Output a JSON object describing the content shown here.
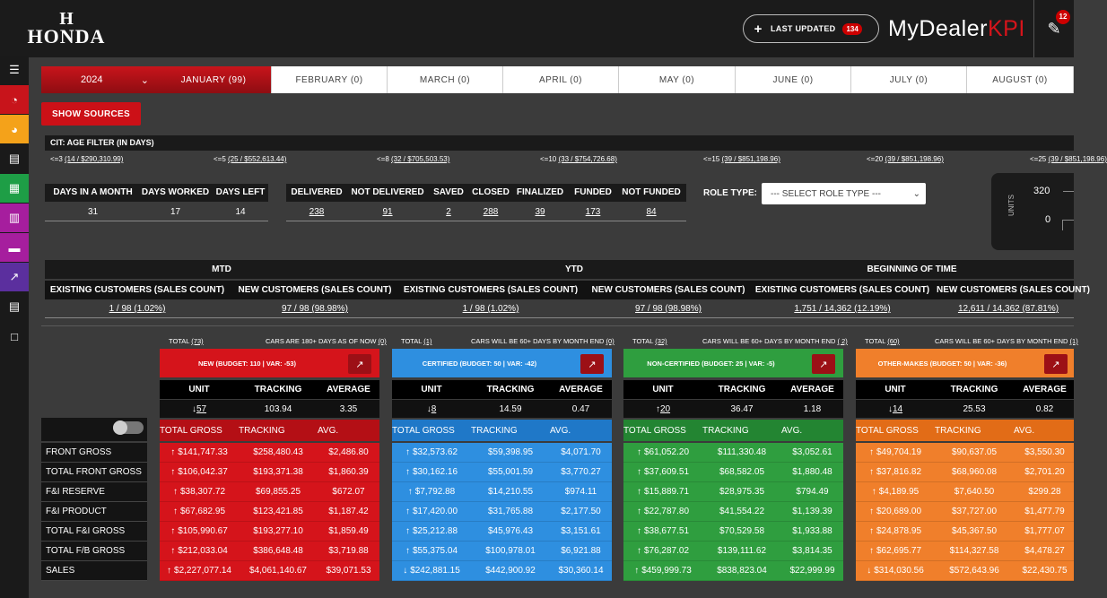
{
  "brand": {
    "logo_text": "HONDA",
    "mark": "H"
  },
  "header": {
    "last_updated_label": "LAST UPDATED",
    "last_updated_count": "134",
    "product_name_a": "MyDealer",
    "product_name_b": "KPI",
    "notif_count": "12"
  },
  "sidebar": {
    "icons": [
      "menu-icon",
      "speedometer-icon",
      "gauge-icon",
      "list-icon",
      "table-icon",
      "grid-icon",
      "card-icon",
      "chart-line-icon",
      "list-alt-icon",
      "document-icon"
    ],
    "colors": [
      "#1a1a1a",
      "#c8141b",
      "#f4a21a",
      "#1a1a1a",
      "#1e9e46",
      "#a61e9e",
      "#a61e9e",
      "#5b2f9e",
      "#1a1a1a",
      "#1a1a1a"
    ]
  },
  "filters": {
    "year": "2024",
    "months": [
      "JANUARY (99)",
      "FEBRUARY (0)",
      "MARCH (0)",
      "APRIL (0)",
      "MAY (0)",
      "JUNE (0)",
      "JULY (0)",
      "AUGUST (0)"
    ],
    "show_sources": "SHOW SOURCES"
  },
  "age_filter": {
    "title": "CIT: AGE FILTER (IN DAYS)",
    "items": [
      {
        "prefix": "<=3 ",
        "link": "(14 / $290,310.99)"
      },
      {
        "prefix": "<=5 ",
        "link": "(25 / $552,613.44)"
      },
      {
        "prefix": "<=8 ",
        "link": "(32 / $705,503.53)"
      },
      {
        "prefix": "<=10 ",
        "link": "(33 / $754,726.68)"
      },
      {
        "prefix": "<=15 ",
        "link": "(39 / $851,198.96)"
      },
      {
        "prefix": "<=20 ",
        "link": "(39 / $851,198.96)"
      },
      {
        "prefix": "<=25 ",
        "link": "(39 / $851,198.96)"
      }
    ]
  },
  "days": {
    "headers": [
      "DAYS IN A MONTH",
      "DAYS WORKED",
      "DAYS LEFT"
    ],
    "values": [
      "31",
      "17",
      "14"
    ]
  },
  "deals": {
    "headers": [
      "DELIVERED",
      "NOT DELIVERED",
      "SAVED",
      "CLOSED",
      "FINALIZED",
      "FUNDED",
      "NOT FUNDED"
    ],
    "values": [
      "238",
      "91",
      "2",
      "288",
      "39",
      "173",
      "84"
    ]
  },
  "role": {
    "label": "ROLE TYPE:",
    "placeholder": "--- SELECT ROLE TYPE ---"
  },
  "minichart": {
    "axis_label": "UNITS",
    "ticks": [
      "320",
      "0"
    ]
  },
  "customers": {
    "groups": [
      "MTD",
      "YTD",
      "BEGINNING OF TIME"
    ],
    "subheaders": [
      "EXISTING CUSTOMERS (SALES COUNT)",
      "NEW CUSTOMERS (SALES COUNT)",
      "EXISTING CUSTOMERS (SALES COUNT)",
      "NEW CUSTOMERS (SALES COUNT)",
      "EXISTING CUSTOMERS (SALES COUNT)",
      "NEW CUSTOMERS (SALES COUNT)"
    ],
    "values": [
      "1 / 98 (1.02%)",
      "97 / 98 (98.98%)",
      "1 / 98 (1.02%)",
      "97 / 98 (98.98%)",
      "1,751 / 14,362 (12.19%)",
      "12,611 / 14,362 (87.81%)"
    ]
  },
  "row_labels": [
    "FRONT GROSS",
    "TOTAL FRONT GROSS",
    "F&I RESERVE",
    "F&I PRODUCT",
    "TOTAL F&I GROSS",
    "TOTAL F/B GROSS",
    "SALES"
  ],
  "cards": [
    {
      "total_label": "TOTAL ",
      "total": "(73)",
      "aged_label": "CARS ARE 180+ DAYS AS OF NOW ",
      "aged": "(0)",
      "title": "NEW (BUDGET: 110 | VAR: -53)",
      "color": "#d5141b",
      "color_dark": "#b40f15",
      "col_headers": [
        "UNIT",
        "TRACKING",
        "AVERAGE"
      ],
      "arrow": "down",
      "unit": "57",
      "tracking": "103.94",
      "average": "3.35",
      "gross_headers": [
        "TOTAL GROSS",
        "TRACKING",
        "AVG."
      ],
      "rows": [
        [
          "$141,747.33",
          "$258,480.43",
          "$2,486.80"
        ],
        [
          "$106,042.37",
          "$193,371.38",
          "$1,860.39"
        ],
        [
          "$38,307.72",
          "$69,855.25",
          "$672.07"
        ],
        [
          "$67,682.95",
          "$123,421.85",
          "$1,187.42"
        ],
        [
          "$105,990.67",
          "$193,277.10",
          "$1,859.49"
        ],
        [
          "$212,033.04",
          "$386,648.48",
          "$3,719.88"
        ],
        [
          "$2,227,077.14",
          "$4,061,140.67",
          "$39,071.53"
        ]
      ],
      "row_arrows": [
        "up",
        "up",
        "up",
        "up",
        "up",
        "up",
        "up"
      ]
    },
    {
      "total_label": "TOTAL ",
      "total": "(1)",
      "aged_label": "CARS WILL BE 60+ DAYS BY MONTH END ",
      "aged": "(0)",
      "title": "CERTIFIED (BUDGET: 50 | VAR: -42)",
      "color": "#2e8fe0",
      "color_dark": "#1f78c8",
      "col_headers": [
        "UNIT",
        "TRACKING",
        "AVERAGE"
      ],
      "arrow": "down",
      "unit": "8",
      "tracking": "14.59",
      "average": "0.47",
      "gross_headers": [
        "TOTAL GROSS",
        "TRACKING",
        "AVG."
      ],
      "rows": [
        [
          "$32,573.62",
          "$59,398.95",
          "$4,071.70"
        ],
        [
          "$30,162.16",
          "$55,001.59",
          "$3,770.27"
        ],
        [
          "$7,792.88",
          "$14,210.55",
          "$974.11"
        ],
        [
          "$17,420.00",
          "$31,765.88",
          "$2,177.50"
        ],
        [
          "$25,212.88",
          "$45,976.43",
          "$3,151.61"
        ],
        [
          "$55,375.04",
          "$100,978.01",
          "$6,921.88"
        ],
        [
          "$242,881.15",
          "$442,900.92",
          "$30,360.14"
        ]
      ],
      "row_arrows": [
        "up",
        "up",
        "up",
        "up",
        "up",
        "up",
        "down"
      ]
    },
    {
      "total_label": "TOTAL ",
      "total": "(32)",
      "aged_label": "CARS WILL BE 60+ DAYS BY MONTH END ",
      "aged": "( 2)",
      "title": "NON-CERTIFIED (BUDGET: 25 | VAR: -5)",
      "color": "#2f9e3f",
      "color_dark": "#238532",
      "col_headers": [
        "UNIT",
        "TRACKING",
        "AVERAGE"
      ],
      "arrow": "up",
      "unit": "20",
      "tracking": "36.47",
      "average": "1.18",
      "gross_headers": [
        "TOTAL GROSS",
        "TRACKING",
        "AVG."
      ],
      "rows": [
        [
          "$61,052.20",
          "$111,330.48",
          "$3,052.61"
        ],
        [
          "$37,609.51",
          "$68,582.05",
          "$1,880.48"
        ],
        [
          "$15,889.71",
          "$28,975.35",
          "$794.49"
        ],
        [
          "$22,787.80",
          "$41,554.22",
          "$1,139.39"
        ],
        [
          "$38,677.51",
          "$70,529.58",
          "$1,933.88"
        ],
        [
          "$76,287.02",
          "$139,111.62",
          "$3,814.35"
        ],
        [
          "$459,999.73",
          "$838,823.04",
          "$22,999.99"
        ]
      ],
      "row_arrows": [
        "up",
        "up",
        "up",
        "up",
        "up",
        "up",
        "up"
      ]
    },
    {
      "total_label": "TOTAL ",
      "total": "(60)",
      "aged_label": "CARS WILL BE 60+ DAYS BY MONTH END ",
      "aged": "(1)",
      "title": "OTHER-MAKES (BUDGET: 50 | VAR: -36)",
      "color": "#f07f2b",
      "color_dark": "#e26c17",
      "col_headers": [
        "UNIT",
        "TRACKING",
        "AVERAGE"
      ],
      "arrow": "down",
      "unit": "14",
      "tracking": "25.53",
      "average": "0.82",
      "gross_headers": [
        "TOTAL GROSS",
        "TRACKING",
        "AVG."
      ],
      "rows": [
        [
          "$49,704.19",
          "$90,637.05",
          "$3,550.30"
        ],
        [
          "$37,816.82",
          "$68,960.08",
          "$2,701.20"
        ],
        [
          "$4,189.95",
          "$7,640.50",
          "$299.28"
        ],
        [
          "$20,689.00",
          "$37,727.00",
          "$1,477.79"
        ],
        [
          "$24,878.95",
          "$45,367.50",
          "$1,777.07"
        ],
        [
          "$62,695.77",
          "$114,327.58",
          "$4,478.27"
        ],
        [
          "$314,030.56",
          "$572,643.96",
          "$22,430.75"
        ]
      ],
      "row_arrows": [
        "up",
        "up",
        "up",
        "up",
        "up",
        "up",
        "down"
      ]
    }
  ]
}
